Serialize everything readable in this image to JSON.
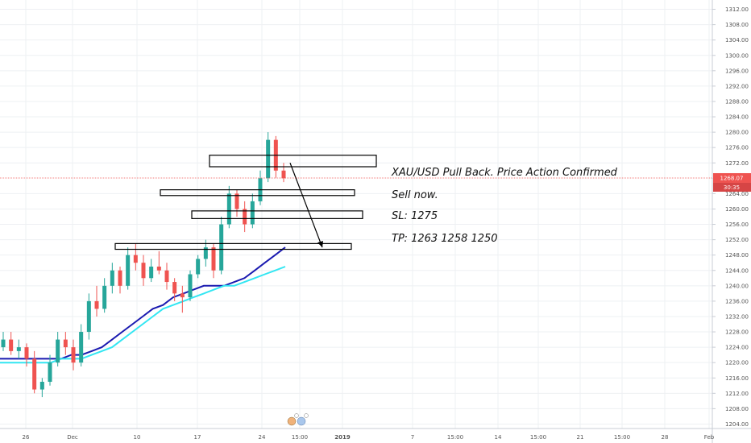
{
  "chart_data": {
    "type": "candlestick",
    "symbol_pair": "XAU/USD",
    "y_axis": {
      "min": 1202,
      "max": 1314,
      "ticks": [
        "1312.00",
        "1308.00",
        "1304.00",
        "1300.00",
        "1296.00",
        "1292.00",
        "1288.00",
        "1284.00",
        "1280.00",
        "1276.00",
        "1272.00",
        "1264.00",
        "1260.00",
        "1256.00",
        "1252.00",
        "1248.00",
        "1244.00",
        "1240.00",
        "1236.00",
        "1232.00",
        "1228.00",
        "1224.00",
        "1220.00",
        "1216.00",
        "1212.00",
        "1208.00",
        "1204.00"
      ]
    },
    "x_axis": {
      "labels": [
        "26",
        "Dec",
        "10",
        "17",
        "24",
        "15:00",
        "2019",
        "7",
        "15:00",
        "14",
        "15:00",
        "21",
        "15:00",
        "28",
        "Feb"
      ]
    },
    "grid": true,
    "current_price": {
      "label": "1268.07",
      "value": 1268.07,
      "countdown": "30:35",
      "color": "#ef5350"
    },
    "candles": [
      [
        1224,
        1228,
        1223,
        1226
      ],
      [
        1226,
        1228,
        1222,
        1223
      ],
      [
        1223,
        1226,
        1221,
        1224
      ],
      [
        1224,
        1225,
        1219,
        1221
      ],
      [
        1221,
        1223,
        1212,
        1213
      ],
      [
        1213,
        1216,
        1211,
        1215
      ],
      [
        1215,
        1222,
        1214,
        1220
      ],
      [
        1220,
        1228,
        1219,
        1226
      ],
      [
        1226,
        1228,
        1222,
        1224
      ],
      [
        1224,
        1226,
        1218,
        1220
      ],
      [
        1220,
        1230,
        1219,
        1228
      ],
      [
        1228,
        1238,
        1226,
        1236
      ],
      [
        1236,
        1240,
        1232,
        1234
      ],
      [
        1234,
        1242,
        1233,
        1240
      ],
      [
        1240,
        1246,
        1238,
        1244
      ],
      [
        1244,
        1245,
        1238,
        1240
      ],
      [
        1240,
        1250,
        1239,
        1248
      ],
      [
        1248,
        1251,
        1244,
        1246
      ],
      [
        1246,
        1248,
        1240,
        1242
      ],
      [
        1242,
        1247,
        1241,
        1245
      ],
      [
        1245,
        1249,
        1243,
        1244
      ],
      [
        1244,
        1246,
        1239,
        1241
      ],
      [
        1241,
        1242,
        1236,
        1238
      ],
      [
        1238,
        1240,
        1233,
        1237
      ],
      [
        1237,
        1244,
        1236,
        1243
      ],
      [
        1243,
        1248,
        1242,
        1247
      ],
      [
        1247,
        1252,
        1245,
        1250
      ],
      [
        1250,
        1251,
        1242,
        1244
      ],
      [
        1244,
        1258,
        1243,
        1256
      ],
      [
        1256,
        1266,
        1255,
        1264
      ],
      [
        1264,
        1265,
        1258,
        1260
      ],
      [
        1260,
        1262,
        1254,
        1256
      ],
      [
        1256,
        1264,
        1255,
        1262
      ],
      [
        1262,
        1270,
        1261,
        1268
      ],
      [
        1268,
        1280,
        1267,
        1278
      ],
      [
        1278,
        1279,
        1268,
        1270
      ],
      [
        1270,
        1272,
        1267,
        1268
      ]
    ],
    "moving_averages": [
      {
        "color": "#1a1ab0",
        "values": [
          1221,
          1221,
          1221,
          1221,
          1221,
          1221,
          1221,
          1222,
          1222,
          1223,
          1224,
          1226,
          1228,
          1230,
          1232,
          1234,
          1235,
          1237,
          1238,
          1239,
          1240,
          1240,
          1240,
          1241,
          1242,
          1244,
          1246,
          1248,
          1250
        ]
      },
      {
        "color": "#33e6f2",
        "values": [
          1220,
          1220,
          1220,
          1220,
          1220,
          1220,
          1221,
          1221,
          1221,
          1222,
          1223,
          1224,
          1226,
          1228,
          1230,
          1232,
          1234,
          1235,
          1236,
          1237,
          1238,
          1239,
          1240,
          1240,
          1241,
          1242,
          1243,
          1244,
          1245
        ]
      }
    ],
    "zones": [
      {
        "high": 1274,
        "low": 1271
      },
      {
        "high": 1265,
        "low": 1263.5
      },
      {
        "high": 1259.5,
        "low": 1257.5
      },
      {
        "high": 1251,
        "low": 1249.5
      }
    ],
    "annotations": [
      "XAU/USD Pull Back. Price Action Confirmed",
      "Sell now.",
      "SL: 1275",
      "TP: 1263 1258 1250"
    ]
  }
}
